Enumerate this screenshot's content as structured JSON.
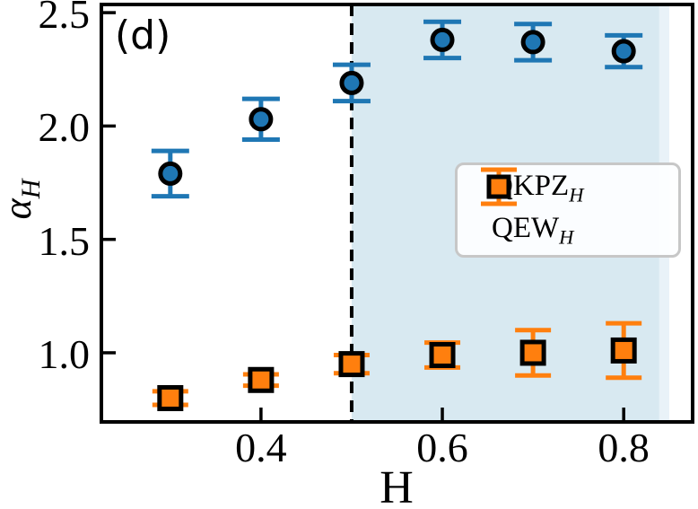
{
  "figure": {
    "panel_label": "(d)",
    "background": "#ffffff"
  },
  "chart_data": {
    "type": "scatter",
    "x": [
      0.3,
      0.4,
      0.5,
      0.6,
      0.7,
      0.8
    ],
    "series": [
      {
        "name": "QKPZ_H",
        "label_prefix": "QKPZ",
        "label_subscript": "H",
        "marker": "circle",
        "color": "#1f77b4",
        "values": [
          1.79,
          2.03,
          2.19,
          2.38,
          2.37,
          2.33
        ],
        "errors": [
          0.1,
          0.09,
          0.08,
          0.08,
          0.08,
          0.07
        ]
      },
      {
        "name": "QEW_H",
        "label_prefix": "QEW",
        "label_subscript": "H",
        "marker": "square",
        "color": "#ff7f0e",
        "values": [
          0.8,
          0.88,
          0.95,
          0.99,
          1.0,
          1.01
        ],
        "errors": [
          0.03,
          0.025,
          0.04,
          0.055,
          0.1,
          0.12
        ]
      }
    ],
    "xlabel": "H",
    "ylabel_prefix": "α",
    "ylabel_subscript": "H",
    "xlim": [
      0.224,
      0.876
    ],
    "ylim": [
      0.695,
      2.536
    ],
    "x_ticks": [
      0.4,
      0.6,
      0.8
    ],
    "y_ticks": [
      1.0,
      1.5,
      2.0,
      2.5
    ],
    "marker_edge_color": "#000000",
    "axis_color": "#000000",
    "vline": {
      "x": 0.5,
      "style": "dashed",
      "color": "#000000"
    },
    "shaded_region": {
      "from": 0.5,
      "to": 0.85,
      "color": "#d8e9f1",
      "edge_fade_color": "#e9f2f8"
    },
    "legend_position": "center-right"
  }
}
